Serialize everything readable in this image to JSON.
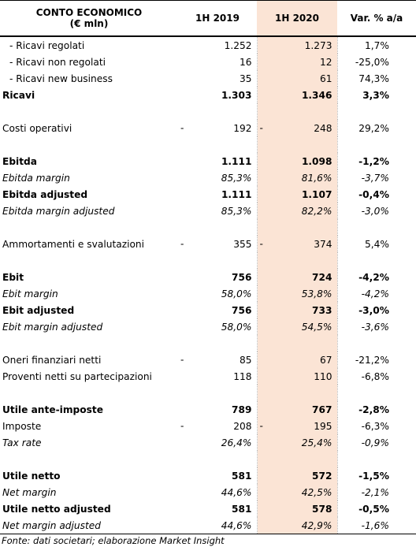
{
  "header": {
    "title_line1": "CONTO ECONOMICO",
    "title_line2": "(€ mln)",
    "col_2019": "1H 2019",
    "col_2020": "1H 2020",
    "col_var": "Var. % a/a"
  },
  "rows": [
    {
      "label": "- Ricavi regolati",
      "v2019": "1.252",
      "v2020": "1.273",
      "var": "1,7%"
    },
    {
      "label": "- Ricavi non regolati",
      "v2019": "16",
      "v2020": "12",
      "var": "-25,0%"
    },
    {
      "label": "- Ricavi new business",
      "v2019": "35",
      "v2020": "61",
      "var": "74,3%"
    },
    {
      "label": "Ricavi",
      "v2019": "1.303",
      "v2020": "1.346",
      "var": "3,3%"
    },
    {
      "label": "Costi operativi",
      "v2019": "192",
      "v2020": "248",
      "var": "29,2%",
      "dash": "-"
    },
    {
      "label": "Ebitda",
      "v2019": "1.111",
      "v2020": "1.098",
      "var": "-1,2%"
    },
    {
      "label": "Ebitda margin",
      "v2019": "85,3%",
      "v2020": "81,6%",
      "var": "-3,7%"
    },
    {
      "label": "Ebitda adjusted",
      "v2019": "1.111",
      "v2020": "1.107",
      "var": "-0,4%"
    },
    {
      "label": "Ebitda margin adjusted",
      "v2019": "85,3%",
      "v2020": "82,2%",
      "var": "-3,0%"
    },
    {
      "label": "Ammortamenti e svalutazioni",
      "v2019": "355",
      "v2020": "374",
      "var": "5,4%",
      "dash": "-"
    },
    {
      "label": "Ebit",
      "v2019": "756",
      "v2020": "724",
      "var": "-4,2%"
    },
    {
      "label": "Ebit margin",
      "v2019": "58,0%",
      "v2020": "53,8%",
      "var": "-4,2%"
    },
    {
      "label": "Ebit adjusted",
      "v2019": "756",
      "v2020": "733",
      "var": "-3,0%"
    },
    {
      "label": "Ebit margin adjusted",
      "v2019": "58,0%",
      "v2020": "54,5%",
      "var": "-3,6%"
    },
    {
      "label": "Oneri finanziari netti",
      "v2019": "85",
      "v2020": "67",
      "var": "-21,2%",
      "dash": "-"
    },
    {
      "label": "Proventi netti su partecipazioni",
      "v2019": "118",
      "v2020": "110",
      "var": "-6,8%"
    },
    {
      "label": "Utile ante-imposte",
      "v2019": "789",
      "v2020": "767",
      "var": "-2,8%"
    },
    {
      "label": "Imposte",
      "v2019": "208",
      "v2020": "195",
      "var": "-6,3%",
      "dash": "-"
    },
    {
      "label": "Tax rate",
      "v2019": "26,4%",
      "v2020": "25,4%",
      "var": "-0,9%"
    },
    {
      "label": "Utile netto",
      "v2019": "581",
      "v2020": "572",
      "var": "-1,5%"
    },
    {
      "label": "Net margin",
      "v2019": "44,6%",
      "v2020": "42,5%",
      "var": "-2,1%"
    },
    {
      "label": "Utile netto adjusted",
      "v2019": "581",
      "v2020": "578",
      "var": "-0,5%"
    },
    {
      "label": "Net margin adjusted",
      "v2019": "44,6%",
      "v2020": "42,9%",
      "var": "-1,6%"
    }
  ],
  "source": "Fonte: dati societari; elaborazione Market Insight",
  "colors": {
    "highlight_2020": "#fbe4d5",
    "rule": "#000000"
  }
}
